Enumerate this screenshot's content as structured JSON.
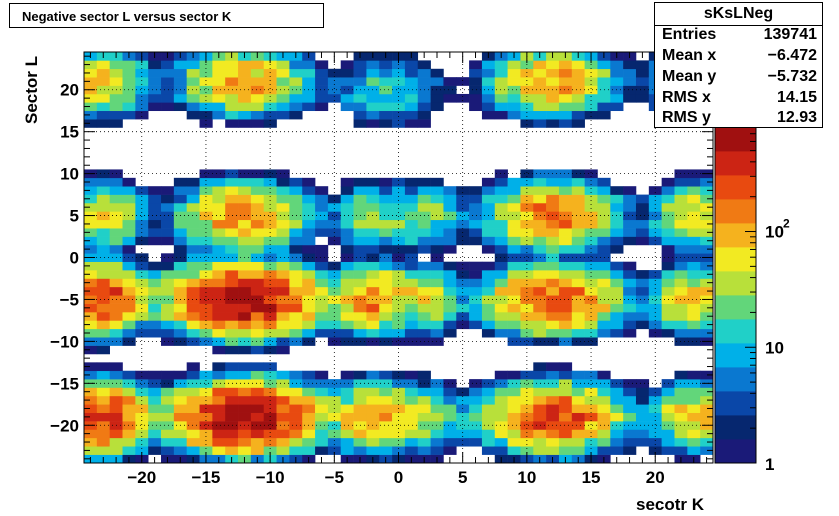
{
  "title": "Negative sector L versus sector K",
  "stats": {
    "name": "sKsLNeg",
    "rows": [
      {
        "key": "Entries",
        "value": "139741"
      },
      {
        "key": "Mean x",
        "value": "−6.472"
      },
      {
        "key": "Mean y",
        "value": "−5.732"
      },
      {
        "key": "RMS x",
        "value": "14.15"
      },
      {
        "key": "RMS y",
        "value": "12.93"
      }
    ]
  },
  "chart_data": {
    "type": "heatmap",
    "title": "Negative sector L versus sector K",
    "xlabel": "secotr K",
    "ylabel": "Sector L",
    "xlim": [
      -24.5,
      24.5
    ],
    "ylim": [
      -24.5,
      24.5
    ],
    "bin_width": 1,
    "x_ticks": [
      -20,
      -15,
      -10,
      -5,
      0,
      5,
      10,
      15,
      20
    ],
    "y_ticks": [
      -20,
      -15,
      -10,
      -5,
      0,
      5,
      10,
      15,
      20
    ],
    "x_tick_labels": [
      "−20",
      "−15",
      "−10",
      "−5",
      "0",
      "5",
      "10",
      "15",
      "20"
    ],
    "y_tick_labels": [
      "−20",
      "−15",
      "−10",
      "−5",
      "0",
      "5",
      "10",
      "15",
      "20"
    ],
    "grid": true,
    "log_z": true,
    "zlim": [
      1,
      800
    ],
    "z_tick_labels": [
      "1",
      "10",
      "10^2"
    ],
    "palette": [
      "#1a1a78",
      "#06276f",
      "#0a47a8",
      "#0a78d0",
      "#00b0e8",
      "#20d0c8",
      "#62d67a",
      "#b8e03a",
      "#f2ea22",
      "#f5b21e",
      "#f07a14",
      "#e84a10",
      "#cc2414",
      "#a01010"
    ],
    "clusters": [
      {
        "x": -23,
        "y": 21,
        "peak": 80,
        "sx": 1.6,
        "sy": 1.8
      },
      {
        "x": -12,
        "y": 21,
        "peak": 120,
        "sx": 2.3,
        "sy": 1.8
      },
      {
        "x": -2,
        "y": 20,
        "peak": 15,
        "sx": 1.5,
        "sy": 2.0
      },
      {
        "x": 1,
        "y": 20,
        "peak": 10,
        "sx": 1.4,
        "sy": 2.0
      },
      {
        "x": 12,
        "y": 21,
        "peak": 120,
        "sx": 2.3,
        "sy": 1.8
      },
      {
        "x": 22,
        "y": 21,
        "peak": 15,
        "sx": 1.6,
        "sy": 1.8
      },
      {
        "x": -23,
        "y": 5,
        "peak": 60,
        "sx": 1.6,
        "sy": 1.8
      },
      {
        "x": -12,
        "y": 5,
        "peak": 150,
        "sx": 2.3,
        "sy": 1.8
      },
      {
        "x": -2,
        "y": 5,
        "peak": 30,
        "sx": 1.6,
        "sy": 1.8
      },
      {
        "x": 2,
        "y": 5,
        "peak": 30,
        "sx": 1.6,
        "sy": 1.8
      },
      {
        "x": 12,
        "y": 5,
        "peak": 180,
        "sx": 2.3,
        "sy": 1.8
      },
      {
        "x": 23,
        "y": 5,
        "peak": 60,
        "sx": 1.6,
        "sy": 1.8
      },
      {
        "x": -23,
        "y": -5,
        "peak": 300,
        "sx": 1.6,
        "sy": 1.8
      },
      {
        "x": -12,
        "y": -5,
        "peak": 700,
        "sx": 2.6,
        "sy": 1.8
      },
      {
        "x": -2,
        "y": -5,
        "peak": 150,
        "sx": 1.5,
        "sy": 1.8
      },
      {
        "x": 2,
        "y": -5,
        "peak": 50,
        "sx": 1.5,
        "sy": 1.8
      },
      {
        "x": 12,
        "y": -5,
        "peak": 250,
        "sx": 2.4,
        "sy": 1.8
      },
      {
        "x": 23,
        "y": -5,
        "peak": 80,
        "sx": 1.6,
        "sy": 1.8
      },
      {
        "x": -23,
        "y": -19,
        "peak": 350,
        "sx": 1.6,
        "sy": 1.8
      },
      {
        "x": -12,
        "y": -19,
        "peak": 700,
        "sx": 2.6,
        "sy": 1.8
      },
      {
        "x": -2,
        "y": -19,
        "peak": 150,
        "sx": 1.5,
        "sy": 1.8
      },
      {
        "x": 2,
        "y": -19,
        "peak": 50,
        "sx": 1.5,
        "sy": 1.8
      },
      {
        "x": 12,
        "y": -19,
        "peak": 300,
        "sx": 2.4,
        "sy": 1.8
      },
      {
        "x": 23,
        "y": -19,
        "peak": 80,
        "sx": 1.6,
        "sy": 1.8
      }
    ]
  }
}
